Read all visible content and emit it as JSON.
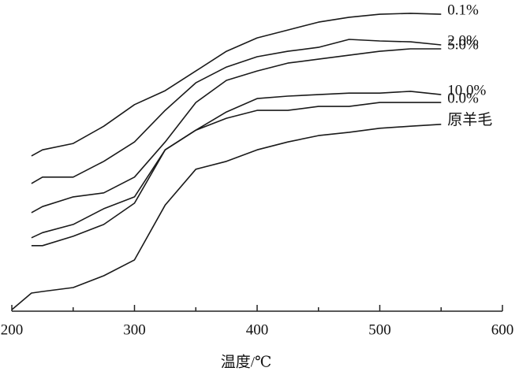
{
  "chart_data": {
    "type": "line",
    "x_label": "温度/℃",
    "x": [
      200,
      216,
      225,
      250,
      275,
      300,
      325,
      350,
      375,
      400,
      425,
      450,
      475,
      500,
      525,
      550
    ],
    "xlim": [
      200,
      600
    ],
    "xticks": [
      200,
      300,
      400,
      500,
      600
    ],
    "xminorticks": [
      250,
      350,
      450,
      550
    ],
    "ylim": [
      0,
      100
    ],
    "series": [
      {
        "name": "0.1%",
        "color": "#1a1a1a",
        "values": [
          null,
          51.2,
          53.2,
          55.3,
          61.0,
          68.1,
          72.7,
          79.2,
          85.7,
          90.1,
          92.7,
          95.3,
          96.9,
          97.9,
          98.2,
          97.9
        ]
      },
      {
        "name": "2.0%",
        "color": "#1a1a1a",
        "values": [
          null,
          42.1,
          44.2,
          44.2,
          49.4,
          55.8,
          66.2,
          75.3,
          80.5,
          83.9,
          85.7,
          87.0,
          89.6,
          89.1,
          88.8,
          87.8
        ]
      },
      {
        "name": "5.0%",
        "color": "#1a1a1a",
        "values": [
          null,
          32.5,
          34.5,
          37.7,
          39.0,
          44.2,
          55.8,
          68.8,
          76.1,
          79.2,
          81.8,
          83.1,
          84.4,
          85.7,
          86.5,
          86.5
        ]
      },
      {
        "name": "10.0%",
        "color": "#1a1a1a",
        "values": [
          null,
          24.2,
          25.9,
          28.6,
          33.8,
          37.7,
          53.2,
          59.7,
          65.7,
          70.1,
          70.9,
          71.4,
          71.9,
          71.9,
          72.5,
          71.4
        ]
      },
      {
        "name": "0.0%",
        "color": "#1a1a1a",
        "values": [
          null,
          21.6,
          21.6,
          24.7,
          28.6,
          35.6,
          53.2,
          59.7,
          63.6,
          66.2,
          66.2,
          67.5,
          67.5,
          68.8,
          68.8,
          68.8
        ]
      },
      {
        "name": "原羊毛",
        "color": "#1a1a1a",
        "values": [
          0.5,
          5.97,
          6.5,
          7.8,
          11.7,
          16.9,
          35.0,
          46.8,
          49.4,
          53.2,
          55.8,
          57.9,
          59.0,
          60.3,
          61.0,
          61.6
        ]
      }
    ]
  }
}
